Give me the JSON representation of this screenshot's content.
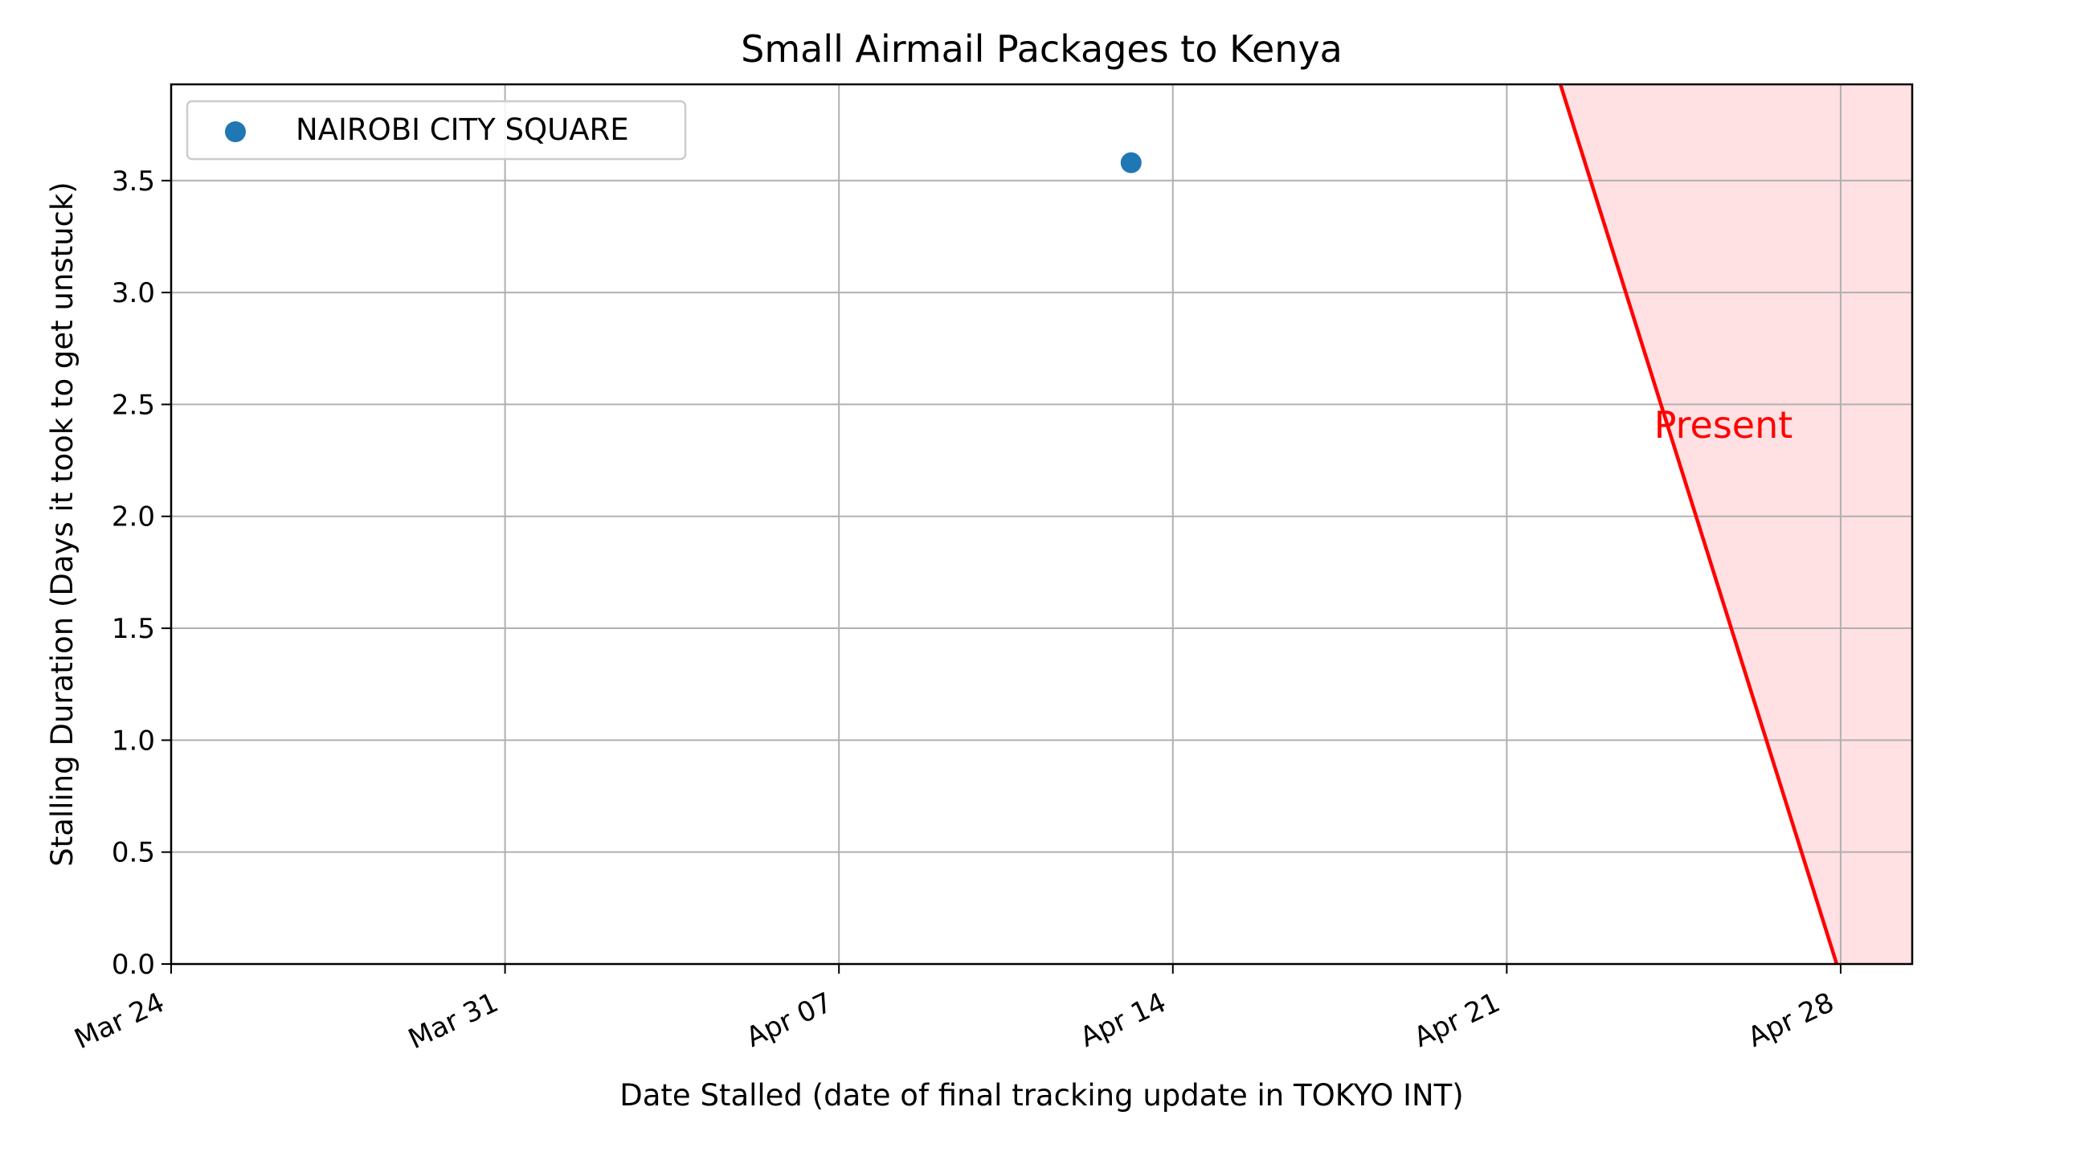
{
  "chart_data": {
    "type": "scatter",
    "title": "Small Airmail Packages to Kenya",
    "xlabel": "Date Stalled (date of final tracking update in TOKYO INT)",
    "ylabel": "Stalling Duration (Days it took to get unstuck)",
    "x_axis": {
      "type": "date",
      "range": [
        "2024-03-24",
        "2024-04-29 12:00"
      ],
      "ticks": [
        {
          "date": "2024-03-24",
          "label": "Mar 24"
        },
        {
          "date": "2024-03-31",
          "label": "Mar 31"
        },
        {
          "date": "2024-04-07",
          "label": "Apr 07"
        },
        {
          "date": "2024-04-14",
          "label": "Apr 14"
        },
        {
          "date": "2024-04-21",
          "label": "Apr 21"
        },
        {
          "date": "2024-04-28",
          "label": "Apr 28"
        }
      ]
    },
    "y_axis": {
      "range": [
        0,
        3.93
      ],
      "ticks": [
        "0.0",
        "0.5",
        "1.0",
        "1.5",
        "2.0",
        "2.5",
        "3.0",
        "3.5"
      ]
    },
    "grid": true,
    "legend": {
      "location": "top-left"
    },
    "series": [
      {
        "name": "NAIROBI CITY SQUARE",
        "color": "#1f77b4",
        "points": [
          {
            "x": "2024-04-13 03:00",
            "y": 3.58
          }
        ]
      }
    ],
    "present_marker": {
      "label": "Present",
      "color": "#ff0000",
      "fill_color": "#ffe0e3",
      "line_points": [
        {
          "x": "2024-04-22 03:00",
          "y": 3.93
        },
        {
          "x": "2024-04-27 22:00",
          "y": 0
        }
      ],
      "label_position": {
        "x": "2024-04-25 13:00",
        "y": 2.35
      }
    }
  }
}
